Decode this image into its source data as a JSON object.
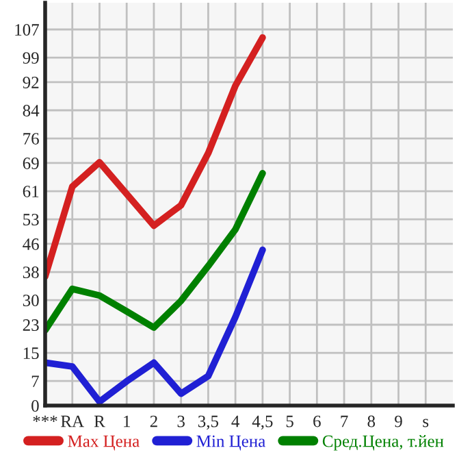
{
  "chart_data": {
    "type": "line",
    "categories": [
      "***",
      "RA",
      "R",
      "1",
      "2",
      "3",
      "3,5",
      "4",
      "4,5",
      "5",
      "6",
      "7",
      "8",
      "9",
      "s"
    ],
    "series": [
      {
        "name": "Max Цена",
        "color": "#d42020",
        "values": [
          36.7,
          62.3,
          69.2,
          60.2,
          51.2,
          57.0,
          71.8,
          91.0,
          104.7,
          null,
          null,
          null,
          null,
          null,
          null
        ]
      },
      {
        "name": "Min Цена",
        "color": "#2020d4",
        "values": [
          12.2,
          11.1,
          1.1,
          6.9,
          12.2,
          3.4,
          8.4,
          25.2,
          44.3,
          null,
          null,
          null,
          null,
          null,
          null
        ]
      },
      {
        "name": "Сред.Цена, т.йен",
        "color": "#008000",
        "values": [
          21.4,
          33.2,
          31.3,
          26.8,
          22.2,
          29.8,
          39.7,
          50.1,
          66.1,
          null,
          null,
          null,
          null,
          null,
          null
        ]
      }
    ],
    "ylim": [
      0,
      114.6
    ],
    "yticks": [
      0,
      7,
      15,
      23,
      30,
      38,
      46,
      53,
      61,
      69,
      76,
      84,
      92,
      99,
      107
    ],
    "grid": true,
    "legend": "bottom",
    "line_style": "solid",
    "marker": "none"
  }
}
